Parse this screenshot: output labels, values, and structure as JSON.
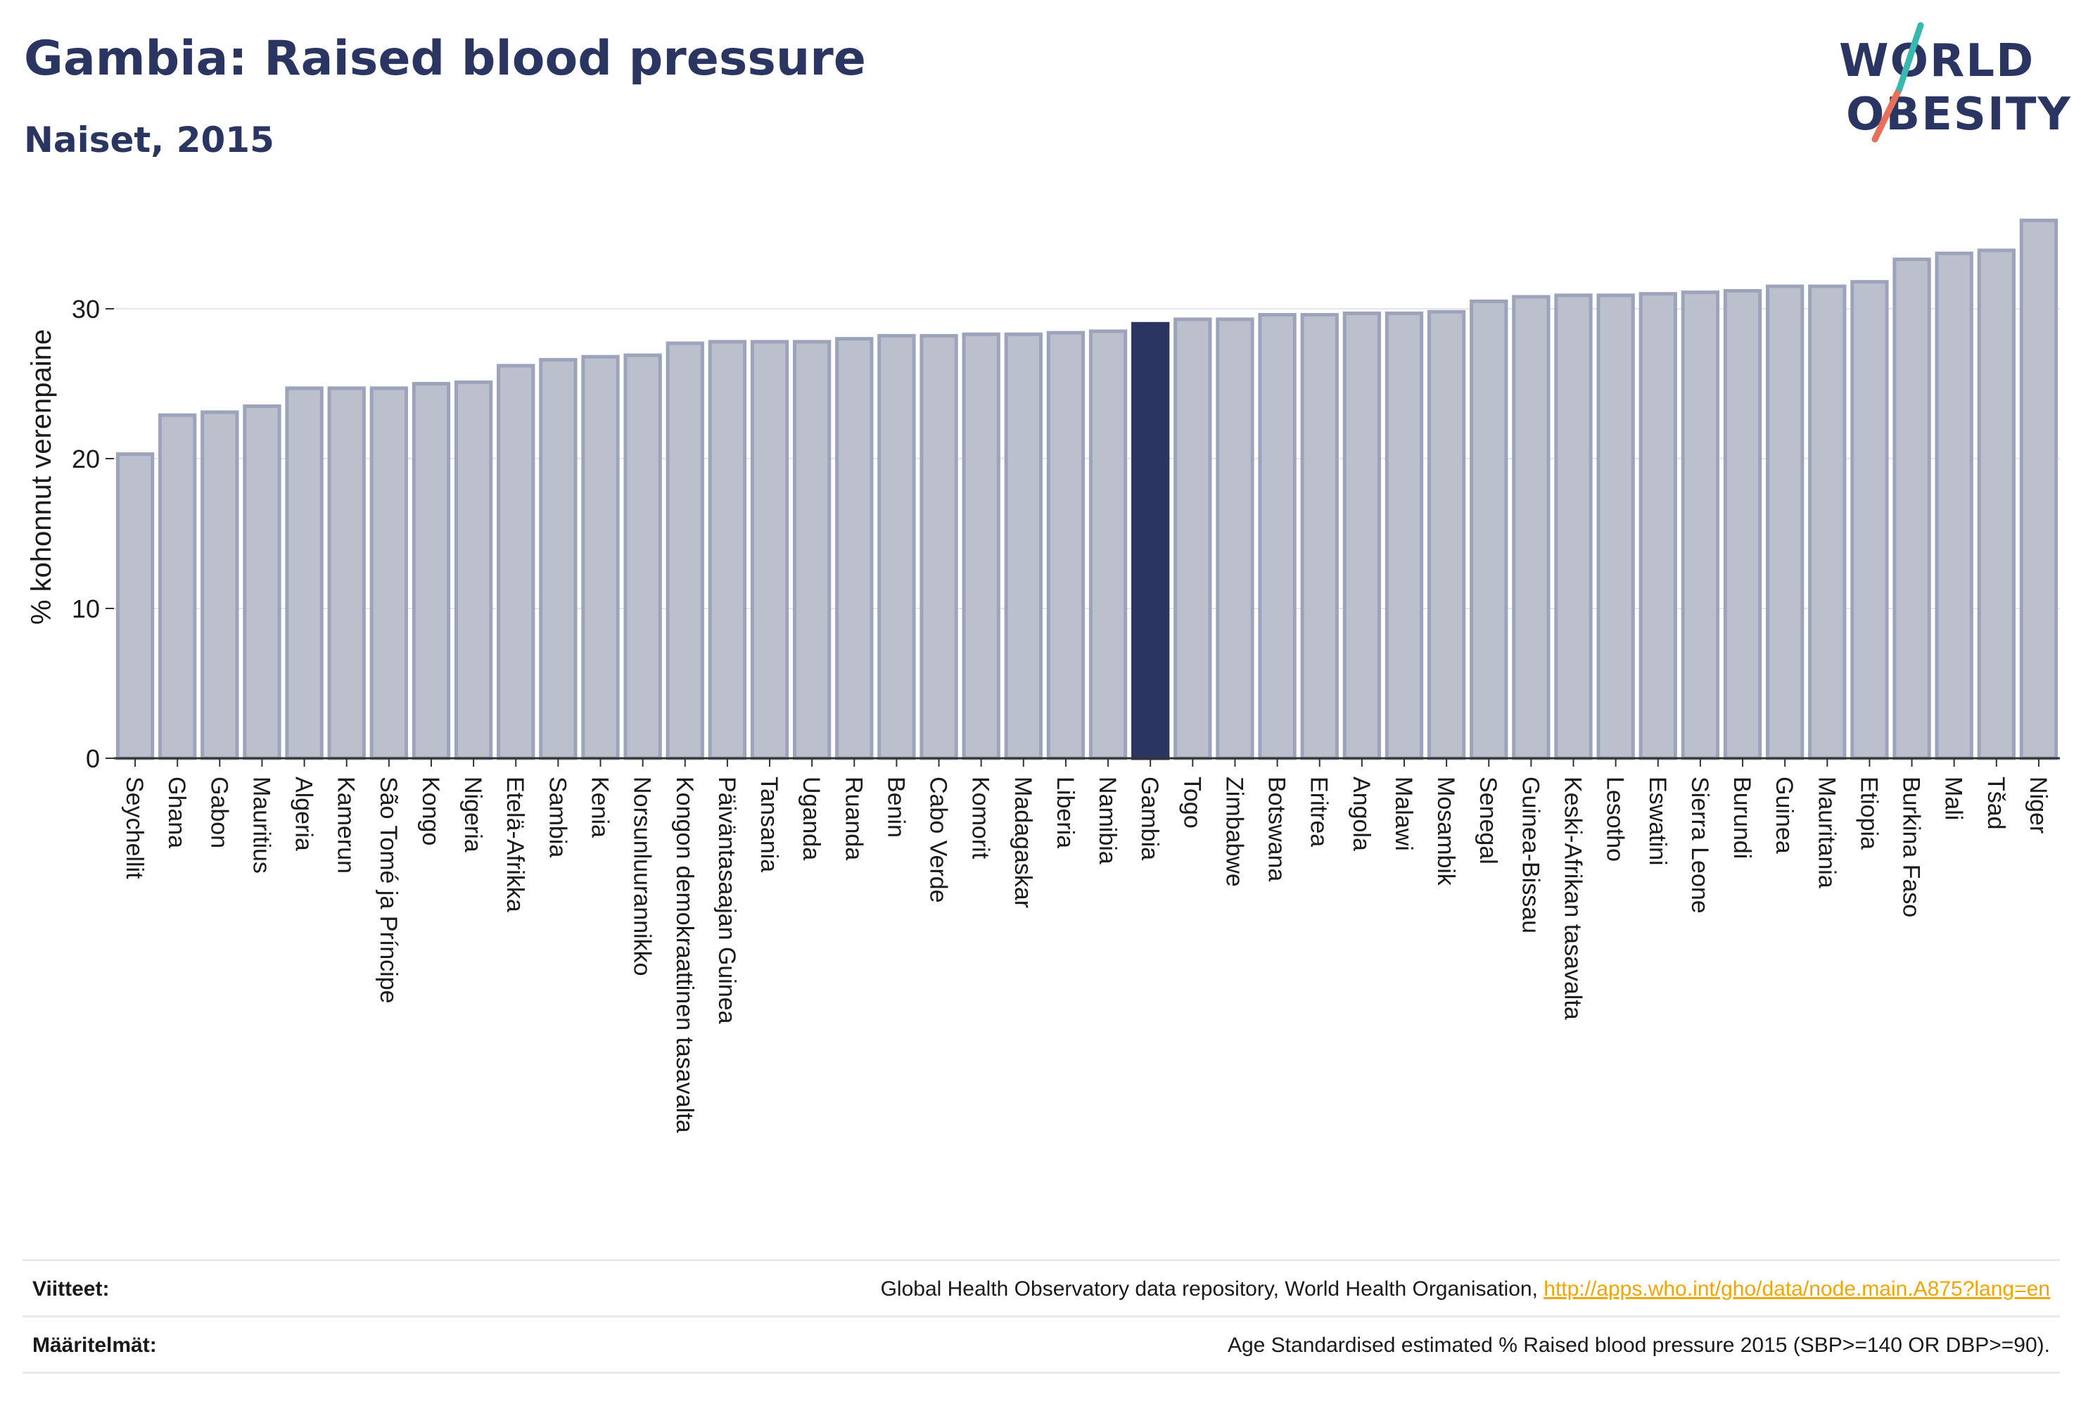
{
  "header": {
    "title": "Gambia: Raised blood pressure",
    "subtitle": "Naiset, 2015",
    "logo_line1": "WORLD",
    "logo_line2": "OBESITY"
  },
  "colors": {
    "bar_fill": "#bcc0cd",
    "bar_stroke": "#9ca3ba",
    "highlight": "#2b3561",
    "text": "#1a1a1a",
    "grid": "#e4e6ec",
    "link": "#f0a500",
    "logo_teal": "#3ab8b0",
    "logo_coral": "#e8705a"
  },
  "chart_data": {
    "type": "bar",
    "title": "Gambia: Raised blood pressure",
    "subtitle": "Naiset, 2015",
    "xlabel": "",
    "ylabel": "% kohonnut verenpaine",
    "ylim": [
      0,
      36
    ],
    "yticks": [
      0,
      10,
      20,
      30
    ],
    "grid": true,
    "highlight_category": "Gambia",
    "categories": [
      "Seychellit",
      "Ghana",
      "Gabon",
      "Mauritius",
      "Algeria",
      "Kamerun",
      "São Tomé ja Príncipe",
      "Kongo",
      "Nigeria",
      "Etelä-Afrikka",
      "Sambia",
      "Kenia",
      "Norsunluurannikko",
      "Kongon demokraattinen tasavalta",
      "Päiväntasaajan Guinea",
      "Tansania",
      "Uganda",
      "Ruanda",
      "Benin",
      "Cabo Verde",
      "Komorit",
      "Madagaskar",
      "Liberia",
      "Namibia",
      "Gambia",
      "Togo",
      "Zimbabwe",
      "Botswana",
      "Eritrea",
      "Angola",
      "Malawi",
      "Mosambik",
      "Senegal",
      "Guinea-Bissau",
      "Keski-Afrikan tasavalta",
      "Lesotho",
      "Eswatini",
      "Sierra Leone",
      "Burundi",
      "Guinea",
      "Mauritania",
      "Etiopia",
      "Burkina Faso",
      "Mali",
      "Tšad",
      "Niger"
    ],
    "values": [
      20.3,
      22.9,
      23.1,
      23.5,
      24.7,
      24.7,
      24.7,
      25.0,
      25.1,
      26.2,
      26.6,
      26.8,
      26.9,
      27.7,
      27.8,
      27.8,
      27.8,
      28.0,
      28.2,
      28.2,
      28.3,
      28.3,
      28.4,
      28.5,
      29.0,
      29.3,
      29.3,
      29.6,
      29.6,
      29.7,
      29.7,
      29.8,
      30.5,
      30.8,
      30.9,
      30.9,
      31.0,
      31.1,
      31.2,
      31.5,
      31.5,
      31.8,
      33.3,
      33.7,
      33.9,
      35.9
    ]
  },
  "footer": {
    "references_label": "Viitteet:",
    "references_text": "Global Health Observatory data repository, World Health Organisation,",
    "references_link": "http://apps.who.int/gho/data/node.main.A875?lang=en",
    "definitions_label": "Määritelmät:",
    "definitions_text": "Age Standardised estimated % Raised blood pressure 2015 (SBP>=140 OR DBP>=90)."
  }
}
